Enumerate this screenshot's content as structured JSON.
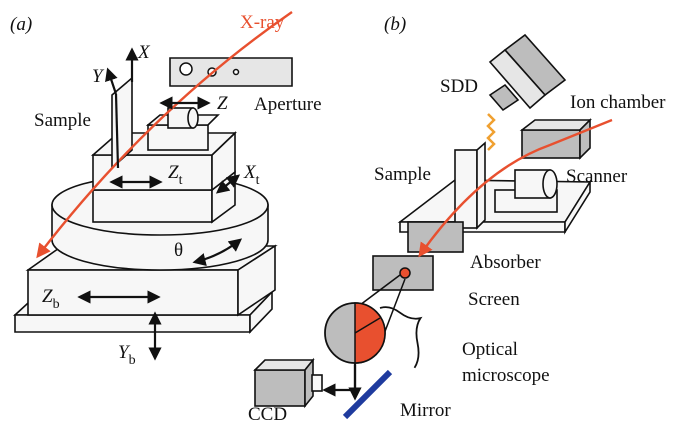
{
  "panel_a": {
    "tag": "(a)",
    "xray": "X-ray",
    "x": "X",
    "y": "Y",
    "z": "Z",
    "aperture": "Aperture",
    "sample": "Sample",
    "zt": {
      "main": "Z",
      "sub": "t"
    },
    "xt": {
      "main": "X",
      "sub": "t"
    },
    "theta": "θ",
    "zb": {
      "main": "Z",
      "sub": "b"
    },
    "yb": {
      "main": "Y",
      "sub": "b"
    }
  },
  "panel_b": {
    "tag": "(b)",
    "sdd": "SDD",
    "ion_chamber": "Ion chamber",
    "sample": "Sample",
    "scanner": "Scanner",
    "absorber": "Absorber",
    "screen": "Screen",
    "optical_microscope": [
      "Optical",
      "microscope"
    ],
    "ccd": "CCD",
    "mirror": "Mirror"
  }
}
